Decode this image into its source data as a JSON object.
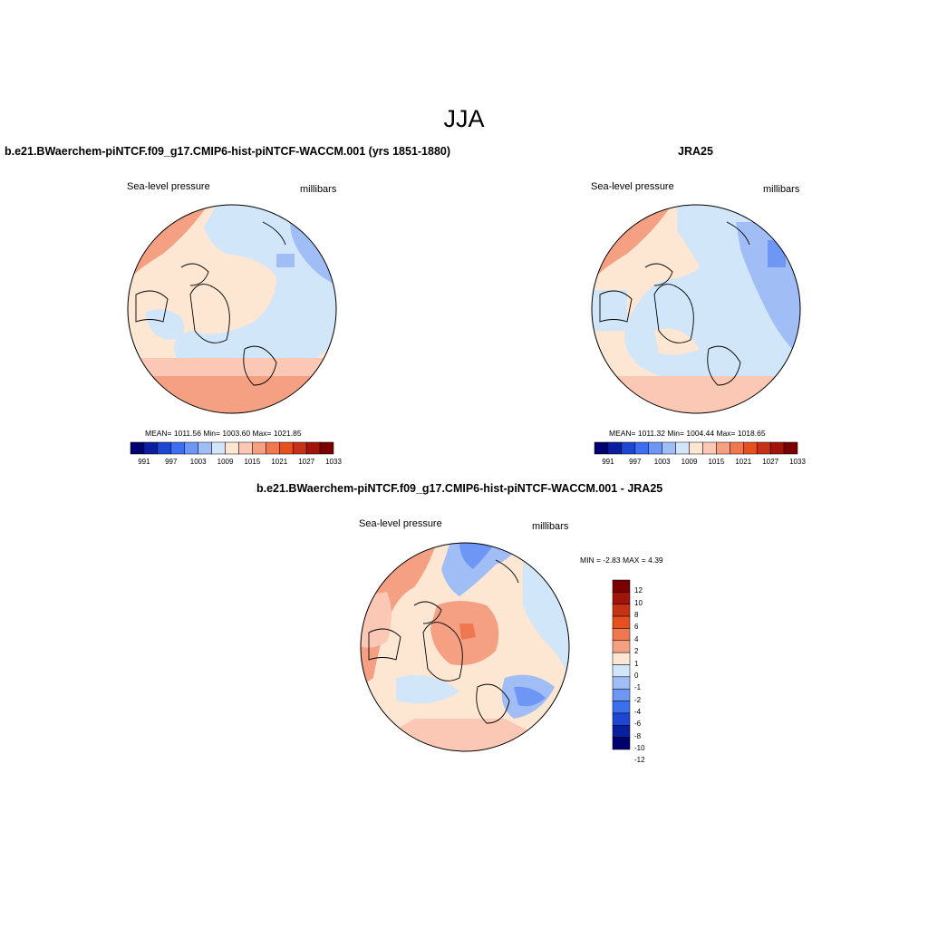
{
  "figure": {
    "title": "JJA"
  },
  "panels": [
    {
      "title": "b.e21.BWaerchem-piNTCF.f09_g17.CMIP6-hist-piNTCF-WACCM.001 (yrs 1851-1880)",
      "left_label": "Sea-level pressure",
      "right_label": "millibars",
      "stats": "MEAN= 1011.56  Min= 1003.60  Max= 1021.85",
      "colorbar_ticks": [
        "991",
        "997",
        "1003",
        "1009",
        "1015",
        "1021",
        "1027",
        "1033"
      ]
    },
    {
      "title": "JRA25",
      "left_label": "Sea-level pressure",
      "right_label": "millibars",
      "stats": "MEAN= 1011.32  Min= 1004.44  Max= 1018.65",
      "colorbar_ticks": [
        "991",
        "997",
        "1003",
        "1009",
        "1015",
        "1021",
        "1027",
        "1033"
      ]
    },
    {
      "title": "b.e21.BWaerchem-piNTCF.f09_g17.CMIP6-hist-piNTCF-WACCM.001 - JRA25",
      "left_label": "Sea-level pressure",
      "right_label": "millibars",
      "stats": "MIN =  -2.83 MAX =   4.39",
      "colorbar_ticks": [
        "12",
        "10",
        "8",
        "6",
        "4",
        "2",
        "1",
        "0",
        "-1",
        "-2",
        "-4",
        "-6",
        "-8",
        "-10",
        "-12"
      ]
    }
  ],
  "palette": {
    "abs": [
      "#00006e",
      "#0a1ea0",
      "#1e46d2",
      "#3c6ef0",
      "#6e96f5",
      "#a0bef5",
      "#d2e6fa",
      "#fde6d2",
      "#fac8b4",
      "#f5a082",
      "#f07850",
      "#e6501e",
      "#c83214",
      "#a0140a",
      "#780000"
    ],
    "diff": [
      "#780000",
      "#a0140a",
      "#c83214",
      "#e6501e",
      "#f07850",
      "#f5a082",
      "#fde6d2",
      "#d2e6fa",
      "#a0bef5",
      "#6e96f5",
      "#3c6ef0",
      "#1e46d2",
      "#0a1ea0",
      "#00006e"
    ]
  }
}
